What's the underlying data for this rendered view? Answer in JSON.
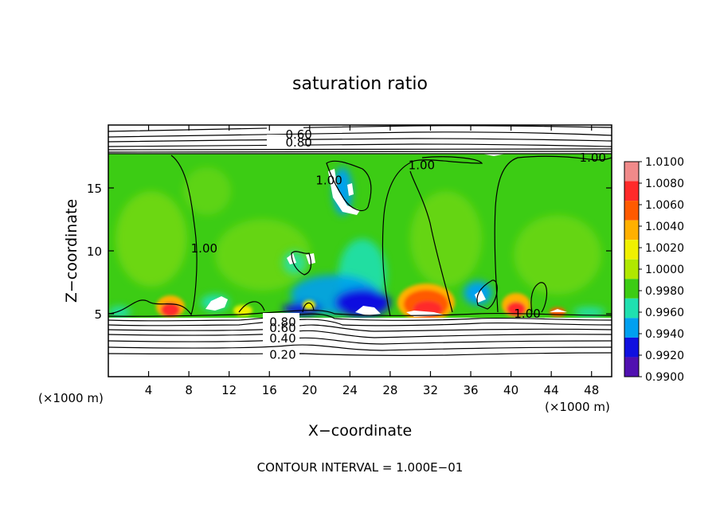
{
  "chart_data": {
    "type": "heatmap",
    "title": "saturation ratio",
    "xlabel": "X−coordinate",
    "ylabel": "Z−coordinate",
    "x_unit": "(×1000 m)",
    "y_unit": "(×1000 m)",
    "xlim": [
      0,
      50
    ],
    "ylim": [
      0,
      20
    ],
    "x_ticks": [
      4,
      8,
      12,
      16,
      20,
      24,
      28,
      32,
      36,
      40,
      44,
      48
    ],
    "y_ticks": [
      5,
      10,
      15
    ],
    "colorbar": {
      "labels": [
        "1.0100",
        "1.0080",
        "1.0060",
        "1.0040",
        "1.0020",
        "1.0000",
        "0.9980",
        "0.9960",
        "0.9940",
        "0.9920",
        "0.9900"
      ],
      "colors": [
        "#f08a8a",
        "#ff2a2a",
        "#ff5a00",
        "#ffb000",
        "#f0f000",
        "#b0e800",
        "#3ccc14",
        "#20e0b0",
        "#00a0f0",
        "#1010e0",
        "#5010b0"
      ]
    },
    "contour_labels": [
      {
        "text": "0.60",
        "x": 17.6,
        "z": 19.25
      },
      {
        "text": "0.80",
        "x": 17.6,
        "z": 18.6
      },
      {
        "text": "1.00",
        "x": 8.2,
        "z": 10.2
      },
      {
        "text": "1.00",
        "x": 20.6,
        "z": 15.6
      },
      {
        "text": "1.00",
        "x": 29.8,
        "z": 16.8
      },
      {
        "text": "1.00",
        "x": 46.8,
        "z": 17.4
      },
      {
        "text": "1.00",
        "x": 40.3,
        "z": 5.0
      },
      {
        "text": "0.80",
        "x": 16.0,
        "z": 4.35
      },
      {
        "text": "0.60",
        "x": 16.0,
        "z": 3.85
      },
      {
        "text": "0.40",
        "x": 16.0,
        "z": 3.05
      },
      {
        "text": "0.20",
        "x": 16.0,
        "z": 1.75
      }
    ],
    "annotation": "CONTOUR INTERVAL = 1.000E−01"
  }
}
